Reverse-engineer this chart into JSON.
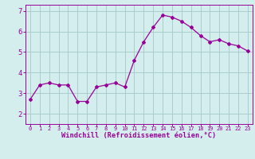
{
  "x": [
    0,
    1,
    2,
    3,
    4,
    5,
    6,
    7,
    8,
    9,
    10,
    11,
    12,
    13,
    14,
    15,
    16,
    17,
    18,
    19,
    20,
    21,
    22,
    23
  ],
  "y": [
    2.7,
    3.4,
    3.5,
    3.4,
    3.4,
    2.6,
    2.6,
    3.3,
    3.4,
    3.5,
    3.3,
    4.6,
    5.5,
    6.2,
    6.8,
    6.7,
    6.5,
    6.2,
    5.8,
    5.5,
    5.6,
    5.4,
    5.3,
    5.05
  ],
  "line_color": "#990099",
  "marker": "D",
  "marker_size": 2,
  "bg_color": "#d4eeee",
  "grid_color": "#aacccc",
  "xlabel": "Windchill (Refroidissement éolien,°C)",
  "tick_color": "#990099",
  "ylim": [
    1.5,
    7.3
  ],
  "yticks": [
    2,
    3,
    4,
    5,
    6,
    7
  ],
  "xlim": [
    -0.5,
    23.5
  ],
  "xticks": [
    0,
    1,
    2,
    3,
    4,
    5,
    6,
    7,
    8,
    9,
    10,
    11,
    12,
    13,
    14,
    15,
    16,
    17,
    18,
    19,
    20,
    21,
    22,
    23
  ]
}
